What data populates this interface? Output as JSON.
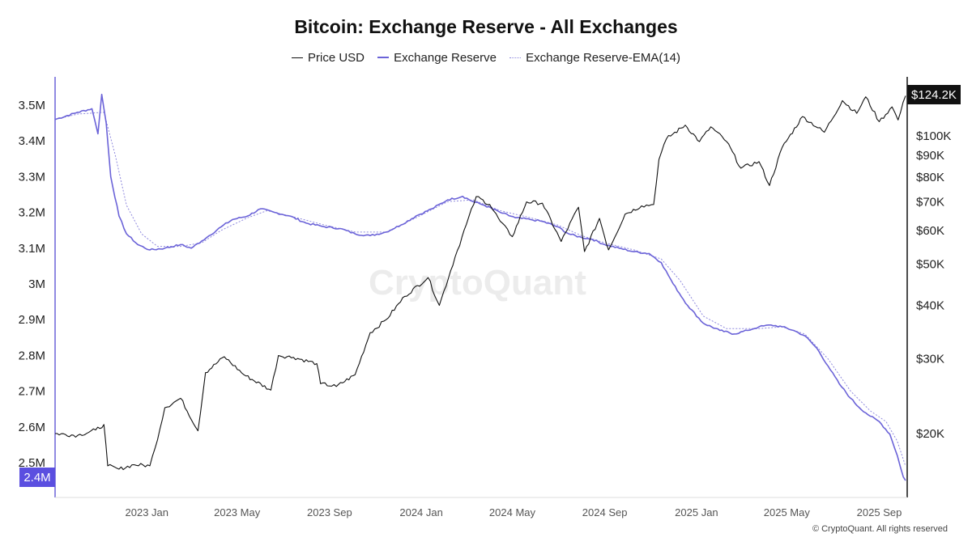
{
  "chart_data": {
    "type": "line",
    "title": "Bitcoin: Exchange Reserve - All Exchanges",
    "legend": [
      {
        "name": "Price USD",
        "color": "#111111",
        "style": "solid"
      },
      {
        "name": "Exchange Reserve",
        "color": "#6b63d8",
        "style": "solid"
      },
      {
        "name": "Exchange Reserve-EMA(14)",
        "color": "#8e88dd",
        "style": "dotted"
      }
    ],
    "legend_position": "top-center",
    "grid": false,
    "x_axis": {
      "type": "date",
      "range": [
        "2022-09-01",
        "2025-10-06"
      ],
      "ticks": [
        "2023 Jan",
        "2023 May",
        "2023 Sep",
        "2024 Jan",
        "2024 May",
        "2024 Sep",
        "2025 Jan",
        "2025 May",
        "2025 Sep"
      ]
    },
    "y_left": {
      "label": "",
      "ticks": [
        "3.5M",
        "3.4M",
        "3.3M",
        "3.2M",
        "3.1M",
        "3M",
        "2.9M",
        "2.8M",
        "2.7M",
        "2.6M",
        "2.5M"
      ],
      "range": [
        2.38,
        3.58
      ],
      "unit": "BTC (millions)",
      "current_value_label": "2.4M"
    },
    "y_right": {
      "label": "",
      "scale": "log",
      "ticks": [
        "$100K",
        "$90K",
        "$80K",
        "$70K",
        "$60K",
        "$50K",
        "$40K",
        "$30K",
        "$20K"
      ],
      "current_value_label": "$124.2K"
    },
    "series": [
      {
        "name": "Exchange Reserve",
        "axis": "left",
        "points": [
          [
            "2022-09-01",
            3.46
          ],
          [
            "2022-10-01",
            3.48
          ],
          [
            "2022-10-20",
            3.49
          ],
          [
            "2022-10-28",
            3.42
          ],
          [
            "2022-11-02",
            3.53
          ],
          [
            "2022-11-08",
            3.45
          ],
          [
            "2022-11-14",
            3.3
          ],
          [
            "2022-11-25",
            3.19
          ],
          [
            "2022-12-05",
            3.14
          ],
          [
            "2022-12-20",
            3.11
          ],
          [
            "2023-01-05",
            3.095
          ],
          [
            "2023-01-25",
            3.1
          ],
          [
            "2023-02-15",
            3.11
          ],
          [
            "2023-03-01",
            3.1
          ],
          [
            "2023-03-15",
            3.12
          ],
          [
            "2023-03-25",
            3.135
          ],
          [
            "2023-04-10",
            3.16
          ],
          [
            "2023-04-25",
            3.18
          ],
          [
            "2023-05-15",
            3.19
          ],
          [
            "2023-06-01",
            3.21
          ],
          [
            "2023-06-20",
            3.2
          ],
          [
            "2023-07-10",
            3.19
          ],
          [
            "2023-08-01",
            3.17
          ],
          [
            "2023-08-25",
            3.16
          ],
          [
            "2023-09-15",
            3.155
          ],
          [
            "2023-10-05",
            3.14
          ],
          [
            "2023-10-25",
            3.135
          ],
          [
            "2023-11-15",
            3.145
          ],
          [
            "2023-12-05",
            3.165
          ],
          [
            "2023-12-25",
            3.19
          ],
          [
            "2024-01-15",
            3.21
          ],
          [
            "2024-02-05",
            3.235
          ],
          [
            "2024-02-25",
            3.245
          ],
          [
            "2024-03-10",
            3.23
          ],
          [
            "2024-03-25",
            3.22
          ],
          [
            "2024-04-15",
            3.2
          ],
          [
            "2024-05-05",
            3.185
          ],
          [
            "2024-05-25",
            3.18
          ],
          [
            "2024-06-10",
            3.175
          ],
          [
            "2024-06-30",
            3.16
          ],
          [
            "2024-07-15",
            3.14
          ],
          [
            "2024-08-01",
            3.13
          ],
          [
            "2024-08-15",
            3.125
          ],
          [
            "2024-09-01",
            3.11
          ],
          [
            "2024-09-20",
            3.1
          ],
          [
            "2024-10-10",
            3.09
          ],
          [
            "2024-10-30",
            3.085
          ],
          [
            "2024-11-15",
            3.06
          ],
          [
            "2024-12-01",
            3.0
          ],
          [
            "2024-12-20",
            2.94
          ],
          [
            "2025-01-10",
            2.89
          ],
          [
            "2025-02-01",
            2.87
          ],
          [
            "2025-02-20",
            2.86
          ],
          [
            "2025-03-10",
            2.87
          ],
          [
            "2025-03-25",
            2.88
          ],
          [
            "2025-04-10",
            2.885
          ],
          [
            "2025-04-25",
            2.88
          ],
          [
            "2025-05-10",
            2.87
          ],
          [
            "2025-05-25",
            2.855
          ],
          [
            "2025-06-10",
            2.82
          ],
          [
            "2025-06-25",
            2.77
          ],
          [
            "2025-07-10",
            2.72
          ],
          [
            "2025-07-25",
            2.68
          ],
          [
            "2025-08-05",
            2.655
          ],
          [
            "2025-08-20",
            2.63
          ],
          [
            "2025-09-01",
            2.615
          ],
          [
            "2025-09-15",
            2.58
          ],
          [
            "2025-09-25",
            2.52
          ],
          [
            "2025-10-03",
            2.46
          ],
          [
            "2025-10-06",
            2.45
          ]
        ]
      },
      {
        "name": "Exchange Reserve-EMA(14)",
        "axis": "left",
        "points": [
          [
            "2022-09-01",
            3.46
          ],
          [
            "2022-10-01",
            3.475
          ],
          [
            "2022-11-05",
            3.48
          ],
          [
            "2022-11-20",
            3.36
          ],
          [
            "2022-12-05",
            3.22
          ],
          [
            "2022-12-25",
            3.14
          ],
          [
            "2023-01-15",
            3.105
          ],
          [
            "2023-02-15",
            3.105
          ],
          [
            "2023-03-15",
            3.115
          ],
          [
            "2023-04-10",
            3.15
          ],
          [
            "2023-05-15",
            3.185
          ],
          [
            "2023-06-10",
            3.205
          ],
          [
            "2023-07-10",
            3.19
          ],
          [
            "2023-08-25",
            3.165
          ],
          [
            "2023-10-05",
            3.145
          ],
          [
            "2023-11-15",
            3.145
          ],
          [
            "2023-12-25",
            3.185
          ],
          [
            "2024-02-05",
            3.23
          ],
          [
            "2024-03-10",
            3.235
          ],
          [
            "2024-04-15",
            3.205
          ],
          [
            "2024-05-25",
            3.185
          ],
          [
            "2024-06-30",
            3.165
          ],
          [
            "2024-08-01",
            3.135
          ],
          [
            "2024-09-01",
            3.115
          ],
          [
            "2024-10-10",
            3.095
          ],
          [
            "2024-11-15",
            3.07
          ],
          [
            "2024-12-10",
            3.01
          ],
          [
            "2025-01-10",
            2.91
          ],
          [
            "2025-02-10",
            2.875
          ],
          [
            "2025-03-25",
            2.875
          ],
          [
            "2025-04-25",
            2.88
          ],
          [
            "2025-05-25",
            2.86
          ],
          [
            "2025-06-25",
            2.79
          ],
          [
            "2025-07-25",
            2.7
          ],
          [
            "2025-08-20",
            2.645
          ],
          [
            "2025-09-10",
            2.615
          ],
          [
            "2025-09-25",
            2.56
          ],
          [
            "2025-10-06",
            2.49
          ]
        ]
      },
      {
        "name": "Price USD",
        "axis": "right",
        "points": [
          [
            "2022-09-01",
            20000
          ],
          [
            "2022-10-01",
            19800
          ],
          [
            "2022-10-25",
            20400
          ],
          [
            "2022-11-05",
            21000
          ],
          [
            "2022-11-10",
            16800
          ],
          [
            "2022-11-25",
            16500
          ],
          [
            "2022-12-15",
            16900
          ],
          [
            "2023-01-05",
            16800
          ],
          [
            "2023-01-12",
            18500
          ],
          [
            "2023-01-25",
            23000
          ],
          [
            "2023-02-15",
            24200
          ],
          [
            "2023-03-10",
            20300
          ],
          [
            "2023-03-20",
            27800
          ],
          [
            "2023-04-14",
            30300
          ],
          [
            "2023-05-10",
            27500
          ],
          [
            "2023-06-15",
            25300
          ],
          [
            "2023-06-25",
            30500
          ],
          [
            "2023-07-15",
            30200
          ],
          [
            "2023-08-15",
            29200
          ],
          [
            "2023-08-20",
            26200
          ],
          [
            "2023-09-10",
            25800
          ],
          [
            "2023-10-05",
            27500
          ],
          [
            "2023-10-25",
            34500
          ],
          [
            "2023-11-15",
            37000
          ],
          [
            "2023-12-10",
            42000
          ],
          [
            "2024-01-10",
            46500
          ],
          [
            "2024-01-25",
            40000
          ],
          [
            "2024-02-15",
            52000
          ],
          [
            "2024-03-01",
            62000
          ],
          [
            "2024-03-14",
            72000
          ],
          [
            "2024-04-01",
            69000
          ],
          [
            "2024-04-15",
            63000
          ],
          [
            "2024-05-01",
            58000
          ],
          [
            "2024-05-20",
            70000
          ],
          [
            "2024-06-10",
            69500
          ],
          [
            "2024-07-05",
            56500
          ],
          [
            "2024-07-28",
            68000
          ],
          [
            "2024-08-05",
            53500
          ],
          [
            "2024-08-25",
            64000
          ],
          [
            "2024-09-06",
            54000
          ],
          [
            "2024-09-28",
            65500
          ],
          [
            "2024-10-20",
            68500
          ],
          [
            "2024-11-05",
            69000
          ],
          [
            "2024-11-12",
            88000
          ],
          [
            "2024-11-22",
            98500
          ],
          [
            "2024-12-17",
            106000
          ],
          [
            "2025-01-05",
            97000
          ],
          [
            "2025-01-20",
            105000
          ],
          [
            "2025-02-10",
            97000
          ],
          [
            "2025-03-01",
            84000
          ],
          [
            "2025-03-25",
            87000
          ],
          [
            "2025-04-08",
            76500
          ],
          [
            "2025-04-25",
            94000
          ],
          [
            "2025-05-22",
            111000
          ],
          [
            "2025-06-20",
            102000
          ],
          [
            "2025-07-14",
            121000
          ],
          [
            "2025-08-02",
            113000
          ],
          [
            "2025-08-14",
            123500
          ],
          [
            "2025-09-01",
            108000
          ],
          [
            "2025-09-18",
            117000
          ],
          [
            "2025-09-26",
            109000
          ],
          [
            "2025-10-06",
            124200
          ]
        ]
      }
    ],
    "watermark": "CryptoQuant",
    "copyright": "© CryptoQuant. All rights reserved"
  }
}
